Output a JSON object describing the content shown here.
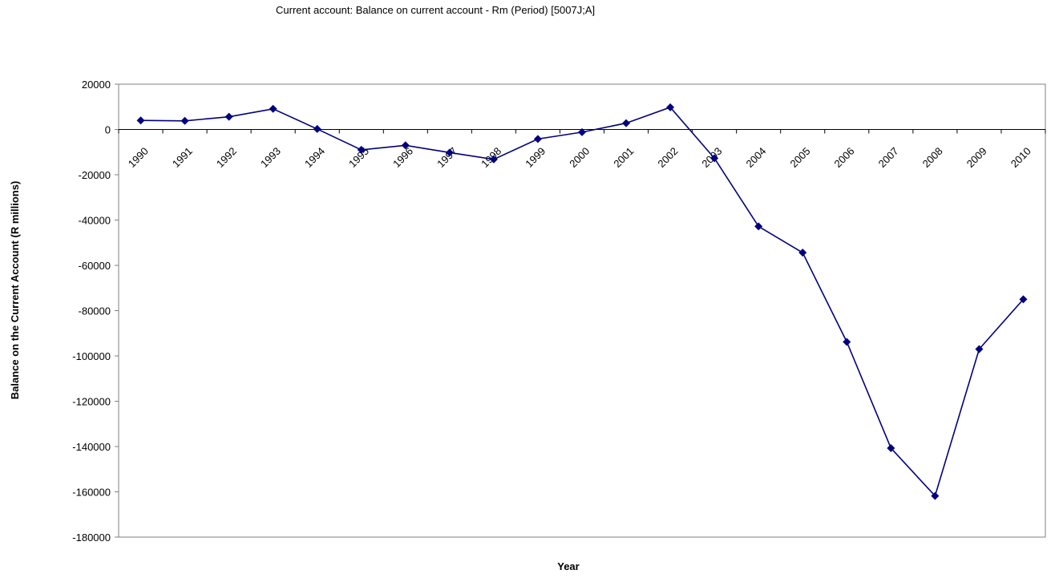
{
  "chart_data": {
    "type": "line",
    "title": "Current account: Balance on current account - Rm (Period) [5007J;A]",
    "xlabel": "Year",
    "ylabel": "Balance on the Current Account (R millions)",
    "categories": [
      "1990",
      "1991",
      "1992",
      "1993",
      "1994",
      "1995",
      "1996",
      "1997",
      "1998",
      "1999",
      "2000",
      "2001",
      "2002",
      "2003",
      "2004",
      "2005",
      "2006",
      "2007",
      "2008",
      "2009",
      "2010"
    ],
    "series": [
      {
        "name": "",
        "values": [
          4000,
          3800,
          5600,
          9100,
          200,
          -9000,
          -7000,
          -10200,
          -13200,
          -4200,
          -1200,
          2800,
          9800,
          -12700,
          -42800,
          -54400,
          -93800,
          -140700,
          -161800,
          -97000,
          -75000
        ]
      }
    ],
    "ylim": [
      -180000,
      20000
    ],
    "yticks": [
      20000,
      0,
      -20000,
      -40000,
      -60000,
      -80000,
      -100000,
      -120000,
      -140000,
      -160000,
      -180000
    ],
    "grid": false,
    "legend": "none",
    "colors": {
      "line": "#000080",
      "marker": "#000080",
      "axis": "#808080",
      "zero_line": "#000000"
    }
  }
}
